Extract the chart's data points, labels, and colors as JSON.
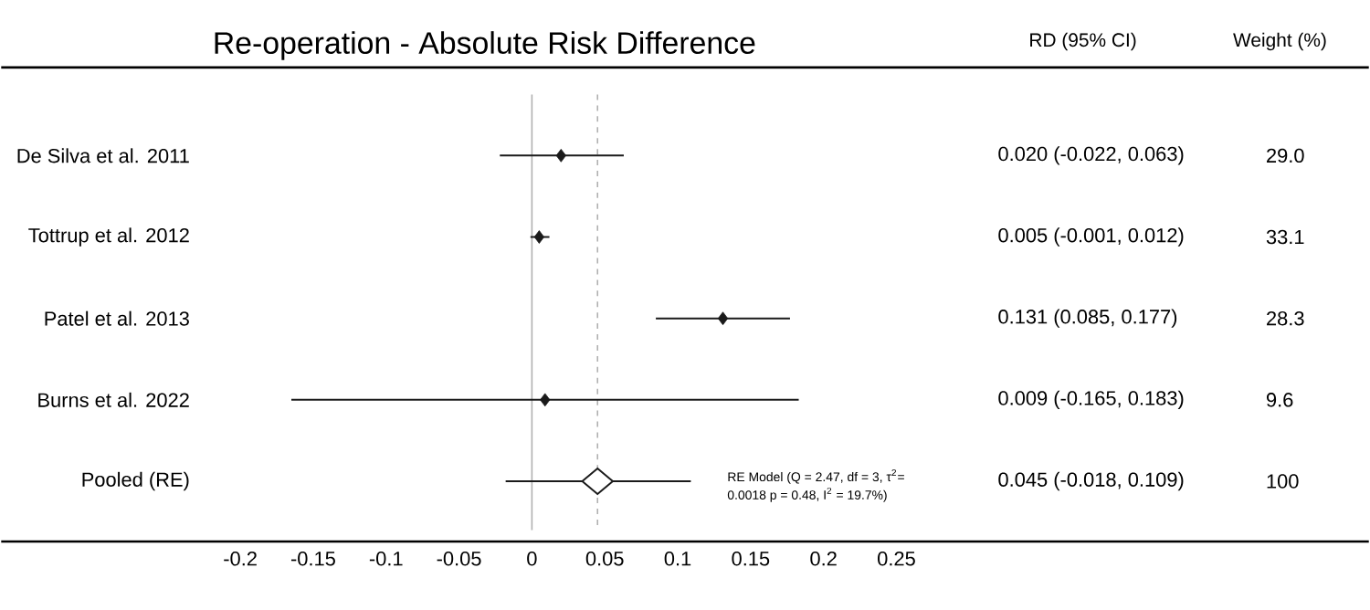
{
  "chart_data": {
    "type": "scatter",
    "orientation": "horizontal",
    "title": "Re-operation - Absolute Risk Difference",
    "categories": [
      "De Silva et al. 2011",
      "Tottrup et al. 2012",
      "Patel et al. 2013",
      "Burns et al. 2022",
      "Pooled (RE)"
    ],
    "xlim": [
      -0.364,
      0.574
    ],
    "xticks": [
      -0.2,
      -0.15,
      -0.1,
      -0.05,
      0,
      0.05,
      0.1,
      0.15,
      0.2,
      0.25
    ],
    "marker": "diamond",
    "series": [
      {
        "color": "#1a1a1a",
        "values": [
          0.02,
          0.005,
          0.131,
          0.009,
          null
        ],
        "errors": [
          [
            -0.022,
            0.063
          ],
          [
            -0.001,
            0.012
          ],
          [
            0.085,
            0.177
          ],
          [
            -0.165,
            0.183
          ],
          null
        ]
      },
      {
        "color": "#1a1a1a",
        "values": [
          null,
          null,
          null,
          null,
          0.045
        ],
        "errors": [
          null,
          null,
          null,
          null,
          [
            -0.018,
            0.109
          ]
        ]
      }
    ],
    "ref_lines": [
      {
        "axis": "x",
        "value": 0,
        "color": "#b0b0b0",
        "line_style": "solid"
      },
      {
        "axis": "x",
        "value": 0.045,
        "color": "#b0b0b0",
        "line_style": "dashed"
      }
    ],
    "annotations": [
      "RD   (95% CI)",
      "Weight   (%)",
      "0.020   (-0.022, 0.063)",
      "0.005   (-0.001, 0.012)",
      "0.131   (0.085, 0.177)",
      "0.009   (-0.165, 0.183)",
      "0.045   (-0.018, 0.109)",
      "29.0",
      "33.1",
      "28.3",
      "9.6",
      "100",
      "RE Model (Q = 2.47, df = 3, τ$^{2}$= 0.0018 p = 0.48,  I$^{2}$ = 19.7%)"
    ]
  }
}
